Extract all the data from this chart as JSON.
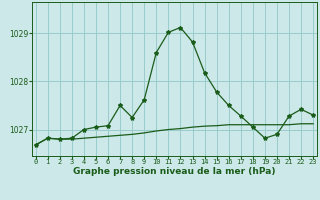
{
  "title": "Graphe pression niveau de la mer (hPa)",
  "bg_color": "#cce8e8",
  "grid_color": "#99cccc",
  "line_color": "#1a5c1a",
  "xlim": [
    -0.3,
    23.3
  ],
  "ylim": [
    1026.45,
    1029.65
  ],
  "yticks": [
    1027,
    1028,
    1029
  ],
  "xticks": [
    0,
    1,
    2,
    3,
    4,
    5,
    6,
    7,
    8,
    9,
    10,
    11,
    12,
    13,
    14,
    15,
    16,
    17,
    18,
    19,
    20,
    21,
    22,
    23
  ],
  "flat_x": [
    0,
    1,
    2,
    3,
    4,
    5,
    6,
    7,
    8,
    9,
    10,
    11,
    12,
    13,
    14,
    15,
    16,
    17,
    18,
    19,
    20,
    21,
    22,
    23
  ],
  "flat_y": [
    1026.68,
    1026.82,
    1026.8,
    1026.8,
    1026.82,
    1026.84,
    1026.86,
    1026.88,
    1026.9,
    1026.93,
    1026.97,
    1027.0,
    1027.02,
    1027.05,
    1027.07,
    1027.08,
    1027.1,
    1027.1,
    1027.1,
    1027.1,
    1027.1,
    1027.1,
    1027.12,
    1027.12
  ],
  "peak_x": [
    0,
    1,
    2,
    3,
    4,
    5,
    6,
    7,
    8,
    9,
    10,
    11,
    12,
    13,
    14,
    15,
    16,
    17,
    18,
    19,
    20,
    21,
    22,
    23
  ],
  "peak_y": [
    1026.68,
    1026.82,
    1026.8,
    1026.82,
    1027.0,
    1027.05,
    1027.08,
    1027.5,
    1027.25,
    1027.62,
    1028.6,
    1029.02,
    1029.12,
    1028.82,
    1028.18,
    1027.78,
    1027.5,
    1027.28,
    1027.05,
    1026.82,
    1026.9,
    1027.28,
    1027.42,
    1027.3
  ]
}
